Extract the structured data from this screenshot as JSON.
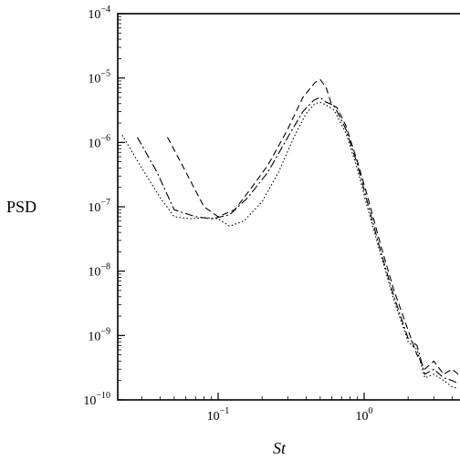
{
  "chart_data": {
    "type": "line",
    "title": "",
    "xlabel": "St",
    "ylabel": "PSD",
    "xscale": "log",
    "yscale": "log",
    "xlim": [
      0.02,
      4.5
    ],
    "ylim": [
      1e-10,
      0.0001
    ],
    "grid": false,
    "x_ticks": [
      {
        "value": 0.1,
        "base": "10",
        "exp": "−1"
      },
      {
        "value": 1,
        "base": "10",
        "exp": "0"
      }
    ],
    "y_ticks": [
      {
        "value": 0.0001,
        "base": "10",
        "exp": "−4"
      },
      {
        "value": 1e-05,
        "base": "10",
        "exp": "−5"
      },
      {
        "value": 1e-06,
        "base": "10",
        "exp": "−6"
      },
      {
        "value": 1e-07,
        "base": "10",
        "exp": "−7"
      },
      {
        "value": 1e-08,
        "base": "10",
        "exp": "−8"
      },
      {
        "value": 1e-09,
        "base": "10",
        "exp": "−9"
      },
      {
        "value": 1e-10,
        "base": "10",
        "exp": "−10"
      }
    ],
    "series": [
      {
        "style": "dashed",
        "x": [
          0.045,
          0.06,
          0.08,
          0.1,
          0.13,
          0.17,
          0.22,
          0.3,
          0.38,
          0.46,
          0.5,
          0.55,
          0.6,
          0.65,
          0.75,
          0.9,
          1.05,
          1.3,
          1.6,
          2.0,
          2.3,
          2.6,
          3.0,
          3.5,
          4.0,
          4.4
        ],
        "y": [
          1.2e-06,
          3.5e-07,
          1e-07,
          7e-08,
          9e-08,
          2e-07,
          4.5e-07,
          1.6e-06,
          5e-06,
          8.5e-06,
          9.5e-06,
          7e-06,
          3.8e-06,
          3.5e-06,
          1.8e-06,
          5e-07,
          1.5e-07,
          2.5e-08,
          5e-09,
          1.2e-09,
          5e-10,
          3e-10,
          4e-10,
          2.5e-10,
          3e-10,
          2.5e-10
        ]
      },
      {
        "style": "dash-dot",
        "x": [
          0.028,
          0.038,
          0.05,
          0.07,
          0.09,
          0.12,
          0.16,
          0.22,
          0.3,
          0.38,
          0.45,
          0.5,
          0.55,
          0.62,
          0.75,
          0.9,
          1.05,
          1.3,
          1.6,
          2.0,
          2.3,
          2.6,
          3.0,
          3.5,
          4.0,
          4.4
        ],
        "y": [
          1.2e-06,
          3.5e-07,
          9e-08,
          7e-08,
          6.5e-08,
          7.5e-08,
          1.4e-07,
          3.5e-07,
          1.2e-06,
          3e-06,
          4.5e-06,
          5e-06,
          4.2e-06,
          3.8e-06,
          1.6e-06,
          4.5e-07,
          1.2e-07,
          2e-08,
          4e-09,
          9e-10,
          7e-10,
          2.5e-10,
          3e-10,
          2.2e-10,
          2e-10,
          1.8e-10
        ]
      },
      {
        "style": "dotted",
        "x": [
          0.022,
          0.03,
          0.04,
          0.05,
          0.065,
          0.08,
          0.1,
          0.12,
          0.15,
          0.2,
          0.26,
          0.33,
          0.4,
          0.46,
          0.5,
          0.55,
          0.62,
          0.75,
          0.9,
          1.05,
          1.3,
          1.6,
          2.0,
          2.3,
          2.6,
          3.0,
          3.5,
          4.0,
          4.4
        ],
        "y": [
          1.3e-06,
          4e-07,
          1.4e-07,
          7e-08,
          6.5e-08,
          6.8e-08,
          6.5e-08,
          5e-08,
          6e-08,
          1.2e-07,
          3.5e-07,
          1.2e-06,
          2.8e-06,
          4e-06,
          4.2e-06,
          3.8e-06,
          3.2e-06,
          1.4e-06,
          3.8e-07,
          1e-07,
          1.8e-08,
          3.5e-09,
          8e-10,
          6e-10,
          2.2e-10,
          2.5e-10,
          2e-10,
          1.6e-10,
          1.5e-10
        ]
      }
    ]
  }
}
